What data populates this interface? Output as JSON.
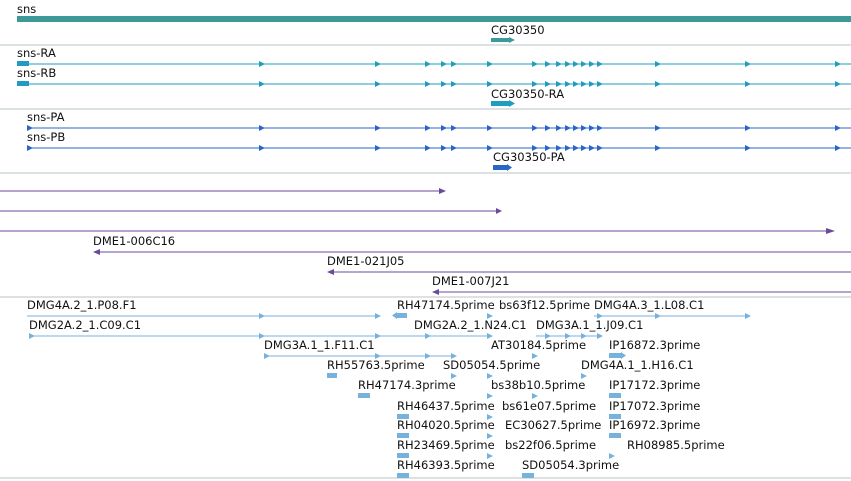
{
  "colors": {
    "gene": "#3d9a98",
    "transcript": "#1f9cbf",
    "protein": "#2a66c8",
    "bac": "#6b4a9c",
    "est": "#77b2dc",
    "separator": "#b9c3c8",
    "text": "#111111"
  },
  "sections": {
    "gene": {
      "label": "sns",
      "gene_name": "CG30350"
    },
    "transcripts": {
      "rows": [
        {
          "label": "sns-RA"
        },
        {
          "label": "sns-RB"
        }
      ],
      "gene_label": "CG30350-RA"
    },
    "proteins": {
      "rows": [
        {
          "label": "sns-PA"
        },
        {
          "label": "sns-PB"
        }
      ],
      "gene_label": "CG30350-PA"
    },
    "clones": {
      "labels": [
        "DME1-006C16",
        "DME1-021J05",
        "DME1-007J21"
      ]
    },
    "ests": {
      "labels": [
        "DMG4A.2_1.P08.F1",
        "RH47174.5prime",
        "bs63f12.5prime",
        "DMG4A.3_1.L08.C1",
        "DMG2A.2_1.C09.C1",
        "DMG2A.2_1.N24.C1",
        "DMG3A.1_1.J09.C1",
        "DMG3A.1_1.F11.C1",
        "AT30184.5prime",
        "IP16872.3prime",
        "RH55763.5prime",
        "SD05054.5prime",
        "DMG4A.1_1.H16.C1",
        "RH47174.3prime",
        "bs38b10.5prime",
        "IP17172.3prime",
        "RH46437.5prime",
        "bs61e07.5prime",
        "IP17072.3prime",
        "RH04020.5prime",
        "EC30627.5prime",
        "IP16972.3prime",
        "RH23469.5prime",
        "bs22f06.5prime",
        "RH08985.5prime",
        "RH46393.5prime",
        "SD05054.3prime"
      ]
    }
  }
}
